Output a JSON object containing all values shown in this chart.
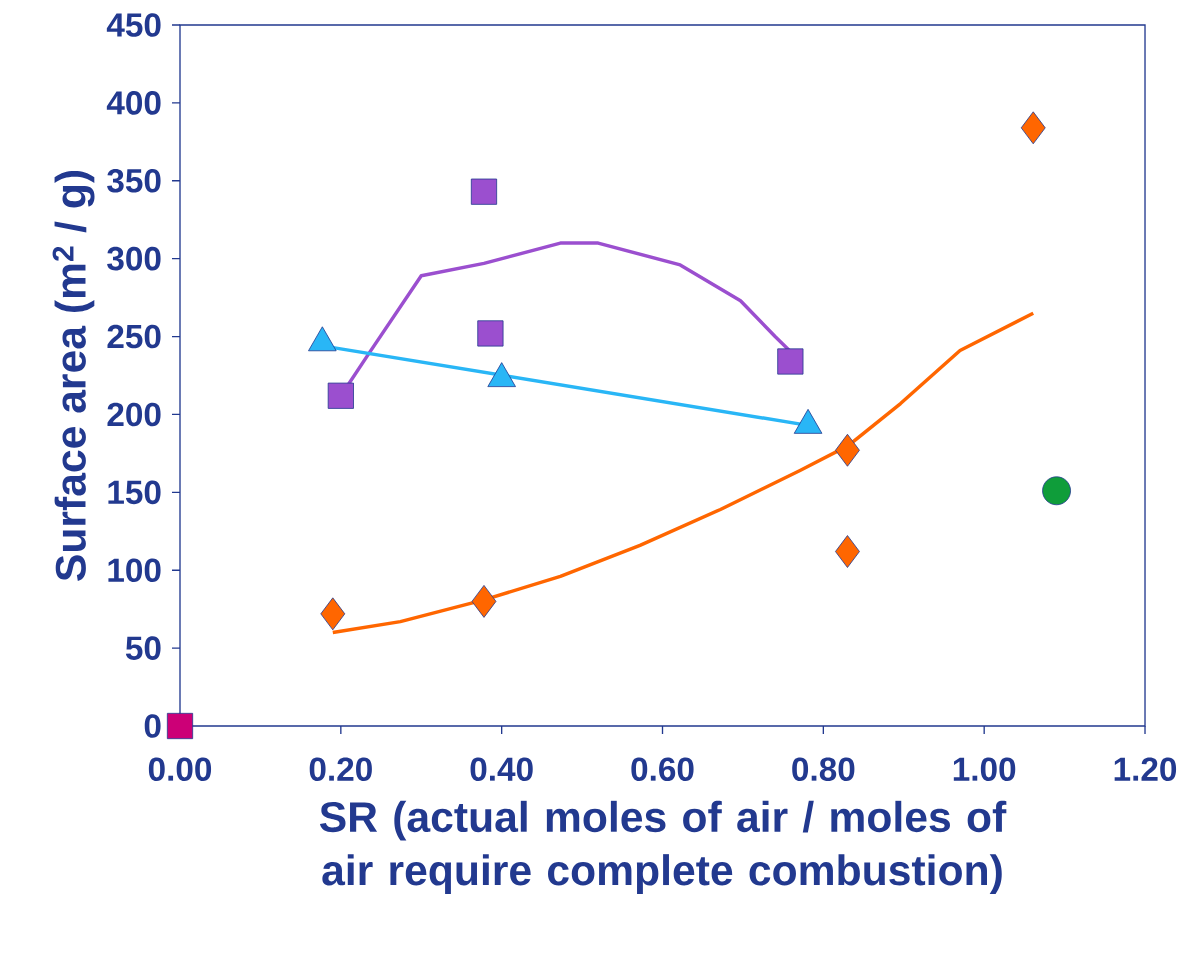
{
  "chart_data": {
    "type": "scatter",
    "xlabel": "SR (actual moles of air / moles of air require complete combustion)",
    "ylabel": "Surface area (m$^{2}$ / g)",
    "xlim": [
      0,
      1.2
    ],
    "ylim": [
      0,
      450
    ],
    "xticks": [
      {
        "value": 0,
        "label": "0.00"
      },
      {
        "value": 0.2,
        "label": "0.20"
      },
      {
        "value": 0.4,
        "label": "0.40"
      },
      {
        "value": 0.6,
        "label": "0.60"
      },
      {
        "value": 0.8,
        "label": "0.80"
      },
      {
        "value": 1.0,
        "label": "1.00"
      },
      {
        "value": 1.2,
        "label": "1.20"
      }
    ],
    "yticks": [
      0,
      50,
      100,
      150,
      200,
      250,
      300,
      350,
      400,
      450
    ],
    "series": [
      {
        "type": "line",
        "color": "#9b4fcf",
        "marker": "none",
        "x": [
          0.2,
          0.236,
          0.3,
          0.378,
          0.473,
          0.52,
          0.622,
          0.697,
          0.74,
          0.76
        ],
        "values": [
          212,
          240,
          289,
          297,
          310,
          310,
          296,
          273,
          250,
          240
        ]
      },
      {
        "type": "line",
        "color": "#29b6f6",
        "marker": "none",
        "x": [
          0.177,
          0.781
        ],
        "values": [
          244,
          193
        ]
      },
      {
        "type": "line",
        "color": "#ff6600",
        "marker": "none",
        "x": [
          0.19,
          0.274,
          0.378,
          0.473,
          0.572,
          0.672,
          0.771,
          0.831,
          0.896,
          0.97,
          1.061
        ],
        "values": [
          60,
          67,
          81,
          96,
          116,
          139,
          164,
          180,
          207,
          241,
          265
        ]
      },
      {
        "color": "#9b4fcf",
        "marker": "square",
        "x": [
          0.2,
          0.378,
          0.386,
          0.759
        ],
        "values": [
          212,
          343,
          252,
          234
        ]
      },
      {
        "color": "#29b6f6",
        "marker": "triangle",
        "x": [
          0.177,
          0.4,
          0.781
        ],
        "values": [
          246,
          223,
          193
        ]
      },
      {
        "color": "#ff6600",
        "marker": "diamond",
        "x": [
          0.19,
          0.378,
          0.83,
          0.83,
          1.061
        ],
        "values": [
          72,
          80,
          177,
          112,
          384
        ]
      },
      {
        "color": "#0f9d3a",
        "marker": "circle",
        "x": [
          1.09
        ],
        "values": [
          151
        ]
      },
      {
        "color": "#cc0077",
        "marker": "square",
        "x": [
          0
        ],
        "values": [
          0
        ]
      }
    ]
  }
}
